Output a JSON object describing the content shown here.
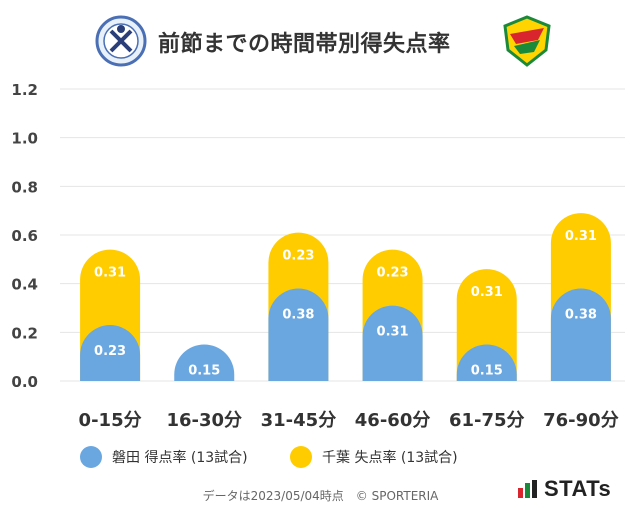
{
  "header": {
    "title": "前節までの時間帯別得失点率"
  },
  "chart_data": {
    "type": "bar",
    "stacked": true,
    "categories": [
      "0-15分",
      "16-30分",
      "31-45分",
      "46-60分",
      "61-75分",
      "76-90分"
    ],
    "series": [
      {
        "name": "磐田 得点率 (13試合)",
        "values": [
          0.23,
          0.15,
          0.38,
          0.31,
          0.15,
          0.38
        ],
        "color": "#6aa7e0"
      },
      {
        "name": "千葉 失点率 (13試合)",
        "values": [
          0.31,
          null,
          0.23,
          0.23,
          0.31,
          0.31
        ],
        "color": "#ffcc00"
      }
    ],
    "ylim": [
      0,
      1.2
    ],
    "yticks": [
      "0.0",
      "0.2",
      "0.4",
      "0.6",
      "0.8",
      "1.0",
      "1.2"
    ],
    "grid": true,
    "legend_position": "bottom"
  },
  "footer": {
    "note": "データは2023/05/04時点　© SPORTERIA",
    "brand": "STATs"
  },
  "colors": {
    "blue": "#6aa7e0",
    "yellow": "#ffcc00",
    "grid": "#e5e5e5"
  }
}
